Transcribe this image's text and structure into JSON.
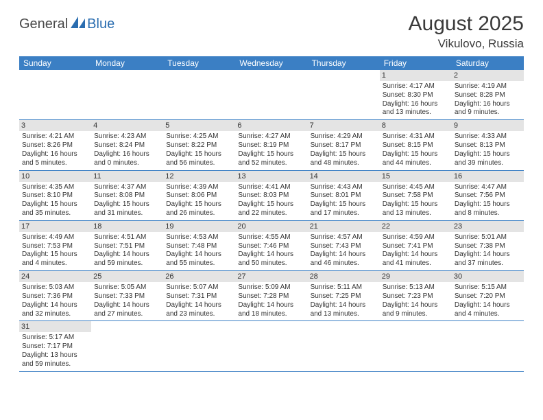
{
  "logo": {
    "part1": "General",
    "part2": "Blue"
  },
  "title": "August 2025",
  "location": "Vikulovo, Russia",
  "colors": {
    "header_bg": "#3b7fc4",
    "header_text": "#ffffff",
    "daynum_bg": "#e4e4e4",
    "row_border": "#3b7fc4",
    "logo_gray": "#4a4a4a",
    "logo_blue": "#2a6db0"
  },
  "weekdays": [
    "Sunday",
    "Monday",
    "Tuesday",
    "Wednesday",
    "Thursday",
    "Friday",
    "Saturday"
  ],
  "weeks": [
    [
      {
        "empty": true
      },
      {
        "empty": true
      },
      {
        "empty": true
      },
      {
        "empty": true
      },
      {
        "empty": true
      },
      {
        "day": "1",
        "sunrise": "Sunrise: 4:17 AM",
        "sunset": "Sunset: 8:30 PM",
        "daylight1": "Daylight: 16 hours",
        "daylight2": "and 13 minutes."
      },
      {
        "day": "2",
        "sunrise": "Sunrise: 4:19 AM",
        "sunset": "Sunset: 8:28 PM",
        "daylight1": "Daylight: 16 hours",
        "daylight2": "and 9 minutes."
      }
    ],
    [
      {
        "day": "3",
        "sunrise": "Sunrise: 4:21 AM",
        "sunset": "Sunset: 8:26 PM",
        "daylight1": "Daylight: 16 hours",
        "daylight2": "and 5 minutes."
      },
      {
        "day": "4",
        "sunrise": "Sunrise: 4:23 AM",
        "sunset": "Sunset: 8:24 PM",
        "daylight1": "Daylight: 16 hours",
        "daylight2": "and 0 minutes."
      },
      {
        "day": "5",
        "sunrise": "Sunrise: 4:25 AM",
        "sunset": "Sunset: 8:22 PM",
        "daylight1": "Daylight: 15 hours",
        "daylight2": "and 56 minutes."
      },
      {
        "day": "6",
        "sunrise": "Sunrise: 4:27 AM",
        "sunset": "Sunset: 8:19 PM",
        "daylight1": "Daylight: 15 hours",
        "daylight2": "and 52 minutes."
      },
      {
        "day": "7",
        "sunrise": "Sunrise: 4:29 AM",
        "sunset": "Sunset: 8:17 PM",
        "daylight1": "Daylight: 15 hours",
        "daylight2": "and 48 minutes."
      },
      {
        "day": "8",
        "sunrise": "Sunrise: 4:31 AM",
        "sunset": "Sunset: 8:15 PM",
        "daylight1": "Daylight: 15 hours",
        "daylight2": "and 44 minutes."
      },
      {
        "day": "9",
        "sunrise": "Sunrise: 4:33 AM",
        "sunset": "Sunset: 8:13 PM",
        "daylight1": "Daylight: 15 hours",
        "daylight2": "and 39 minutes."
      }
    ],
    [
      {
        "day": "10",
        "sunrise": "Sunrise: 4:35 AM",
        "sunset": "Sunset: 8:10 PM",
        "daylight1": "Daylight: 15 hours",
        "daylight2": "and 35 minutes."
      },
      {
        "day": "11",
        "sunrise": "Sunrise: 4:37 AM",
        "sunset": "Sunset: 8:08 PM",
        "daylight1": "Daylight: 15 hours",
        "daylight2": "and 31 minutes."
      },
      {
        "day": "12",
        "sunrise": "Sunrise: 4:39 AM",
        "sunset": "Sunset: 8:06 PM",
        "daylight1": "Daylight: 15 hours",
        "daylight2": "and 26 minutes."
      },
      {
        "day": "13",
        "sunrise": "Sunrise: 4:41 AM",
        "sunset": "Sunset: 8:03 PM",
        "daylight1": "Daylight: 15 hours",
        "daylight2": "and 22 minutes."
      },
      {
        "day": "14",
        "sunrise": "Sunrise: 4:43 AM",
        "sunset": "Sunset: 8:01 PM",
        "daylight1": "Daylight: 15 hours",
        "daylight2": "and 17 minutes."
      },
      {
        "day": "15",
        "sunrise": "Sunrise: 4:45 AM",
        "sunset": "Sunset: 7:58 PM",
        "daylight1": "Daylight: 15 hours",
        "daylight2": "and 13 minutes."
      },
      {
        "day": "16",
        "sunrise": "Sunrise: 4:47 AM",
        "sunset": "Sunset: 7:56 PM",
        "daylight1": "Daylight: 15 hours",
        "daylight2": "and 8 minutes."
      }
    ],
    [
      {
        "day": "17",
        "sunrise": "Sunrise: 4:49 AM",
        "sunset": "Sunset: 7:53 PM",
        "daylight1": "Daylight: 15 hours",
        "daylight2": "and 4 minutes."
      },
      {
        "day": "18",
        "sunrise": "Sunrise: 4:51 AM",
        "sunset": "Sunset: 7:51 PM",
        "daylight1": "Daylight: 14 hours",
        "daylight2": "and 59 minutes."
      },
      {
        "day": "19",
        "sunrise": "Sunrise: 4:53 AM",
        "sunset": "Sunset: 7:48 PM",
        "daylight1": "Daylight: 14 hours",
        "daylight2": "and 55 minutes."
      },
      {
        "day": "20",
        "sunrise": "Sunrise: 4:55 AM",
        "sunset": "Sunset: 7:46 PM",
        "daylight1": "Daylight: 14 hours",
        "daylight2": "and 50 minutes."
      },
      {
        "day": "21",
        "sunrise": "Sunrise: 4:57 AM",
        "sunset": "Sunset: 7:43 PM",
        "daylight1": "Daylight: 14 hours",
        "daylight2": "and 46 minutes."
      },
      {
        "day": "22",
        "sunrise": "Sunrise: 4:59 AM",
        "sunset": "Sunset: 7:41 PM",
        "daylight1": "Daylight: 14 hours",
        "daylight2": "and 41 minutes."
      },
      {
        "day": "23",
        "sunrise": "Sunrise: 5:01 AM",
        "sunset": "Sunset: 7:38 PM",
        "daylight1": "Daylight: 14 hours",
        "daylight2": "and 37 minutes."
      }
    ],
    [
      {
        "day": "24",
        "sunrise": "Sunrise: 5:03 AM",
        "sunset": "Sunset: 7:36 PM",
        "daylight1": "Daylight: 14 hours",
        "daylight2": "and 32 minutes."
      },
      {
        "day": "25",
        "sunrise": "Sunrise: 5:05 AM",
        "sunset": "Sunset: 7:33 PM",
        "daylight1": "Daylight: 14 hours",
        "daylight2": "and 27 minutes."
      },
      {
        "day": "26",
        "sunrise": "Sunrise: 5:07 AM",
        "sunset": "Sunset: 7:31 PM",
        "daylight1": "Daylight: 14 hours",
        "daylight2": "and 23 minutes."
      },
      {
        "day": "27",
        "sunrise": "Sunrise: 5:09 AM",
        "sunset": "Sunset: 7:28 PM",
        "daylight1": "Daylight: 14 hours",
        "daylight2": "and 18 minutes."
      },
      {
        "day": "28",
        "sunrise": "Sunrise: 5:11 AM",
        "sunset": "Sunset: 7:25 PM",
        "daylight1": "Daylight: 14 hours",
        "daylight2": "and 13 minutes."
      },
      {
        "day": "29",
        "sunrise": "Sunrise: 5:13 AM",
        "sunset": "Sunset: 7:23 PM",
        "daylight1": "Daylight: 14 hours",
        "daylight2": "and 9 minutes."
      },
      {
        "day": "30",
        "sunrise": "Sunrise: 5:15 AM",
        "sunset": "Sunset: 7:20 PM",
        "daylight1": "Daylight: 14 hours",
        "daylight2": "and 4 minutes."
      }
    ],
    [
      {
        "day": "31",
        "sunrise": "Sunrise: 5:17 AM",
        "sunset": "Sunset: 7:17 PM",
        "daylight1": "Daylight: 13 hours",
        "daylight2": "and 59 minutes."
      },
      {
        "empty": true
      },
      {
        "empty": true
      },
      {
        "empty": true
      },
      {
        "empty": true
      },
      {
        "empty": true
      },
      {
        "empty": true
      }
    ]
  ]
}
